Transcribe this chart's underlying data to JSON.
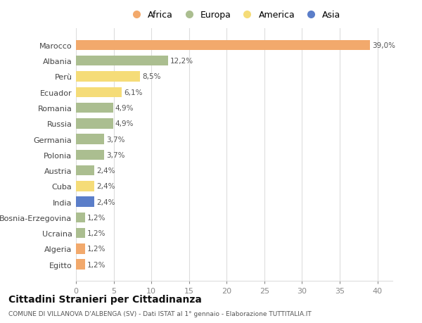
{
  "countries": [
    "Marocco",
    "Albania",
    "Perù",
    "Ecuador",
    "Romania",
    "Russia",
    "Germania",
    "Polonia",
    "Austria",
    "Cuba",
    "India",
    "Bosnia-Erzegovina",
    "Ucraina",
    "Algeria",
    "Egitto"
  ],
  "values": [
    39.0,
    12.2,
    8.5,
    6.1,
    4.9,
    4.9,
    3.7,
    3.7,
    2.4,
    2.4,
    2.4,
    1.2,
    1.2,
    1.2,
    1.2
  ],
  "continents": [
    "Africa",
    "Europa",
    "America",
    "America",
    "Europa",
    "Europa",
    "Europa",
    "Europa",
    "Europa",
    "America",
    "Asia",
    "Europa",
    "Europa",
    "Africa",
    "Africa"
  ],
  "colors": {
    "Africa": "#F2A96C",
    "Europa": "#ABBE90",
    "America": "#F5DC78",
    "Asia": "#5B7EC9"
  },
  "legend_order": [
    "Africa",
    "Europa",
    "America",
    "Asia"
  ],
  "title": "Cittadini Stranieri per Cittadinanza",
  "subtitle": "COMUNE DI VILLANOVA D'ALBENGA (SV) - Dati ISTAT al 1° gennaio - Elaborazione TUTTITALIA.IT",
  "xlim": [
    0,
    42
  ],
  "xticks": [
    0,
    5,
    10,
    15,
    20,
    25,
    30,
    35,
    40
  ],
  "bg_color": "#ffffff",
  "grid_color": "#dddddd"
}
